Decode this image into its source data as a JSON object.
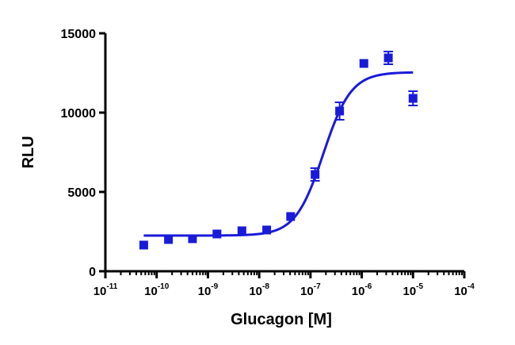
{
  "chart_data": {
    "type": "scatter",
    "title": "",
    "xlabel": "Glucagon [M]",
    "ylabel": "RLU",
    "x_scale": "log10",
    "xlim": [
      1e-11,
      0.0001
    ],
    "ylim": [
      0,
      15000
    ],
    "x_ticks": [
      {
        "base": "10",
        "exp": "-11",
        "value": 1e-11
      },
      {
        "base": "10",
        "exp": "-10",
        "value": 1e-10
      },
      {
        "base": "10",
        "exp": "-9",
        "value": 1e-09
      },
      {
        "base": "10",
        "exp": "-8",
        "value": 1e-08
      },
      {
        "base": "10",
        "exp": "-7",
        "value": 1e-07
      },
      {
        "base": "10",
        "exp": "-6",
        "value": 1e-06
      },
      {
        "base": "10",
        "exp": "-5",
        "value": 1e-05
      },
      {
        "base": "10",
        "exp": "-4",
        "value": 0.0001
      }
    ],
    "y_ticks": [
      {
        "label": "0",
        "value": 0
      },
      {
        "label": "5000",
        "value": 5000
      },
      {
        "label": "10000",
        "value": 10000
      },
      {
        "label": "15000",
        "value": 15000
      }
    ],
    "grid": false,
    "legend": "none",
    "color": "#1a1adb",
    "series": [
      {
        "points": [
          {
            "x": 5.6e-11,
            "y": 1650,
            "err": 150
          },
          {
            "x": 1.7e-10,
            "y": 2000,
            "err": 120
          },
          {
            "x": 5e-10,
            "y": 2050,
            "err": 120
          },
          {
            "x": 1.5e-09,
            "y": 2350,
            "err": 150
          },
          {
            "x": 4.6e-09,
            "y": 2550,
            "err": 150
          },
          {
            "x": 1.4e-08,
            "y": 2600,
            "err": 150
          },
          {
            "x": 4.1e-08,
            "y": 3450,
            "err": 150
          },
          {
            "x": 1.23e-07,
            "y": 6100,
            "err": 400
          },
          {
            "x": 3.7e-07,
            "y": 10100,
            "err": 550
          },
          {
            "x": 1.1e-06,
            "y": 13100,
            "err": 150
          },
          {
            "x": 3.3e-06,
            "y": 13450,
            "err": 400
          },
          {
            "x": 1e-05,
            "y": 10900,
            "err": 450
          }
        ],
        "fit": {
          "model": "sigmoidal dose-response",
          "bottom": 2250,
          "top": 12550,
          "logEC50": -6.75,
          "hillslope": 1.6,
          "x_range": [
            5.6e-11,
            1e-05
          ]
        }
      }
    ]
  }
}
